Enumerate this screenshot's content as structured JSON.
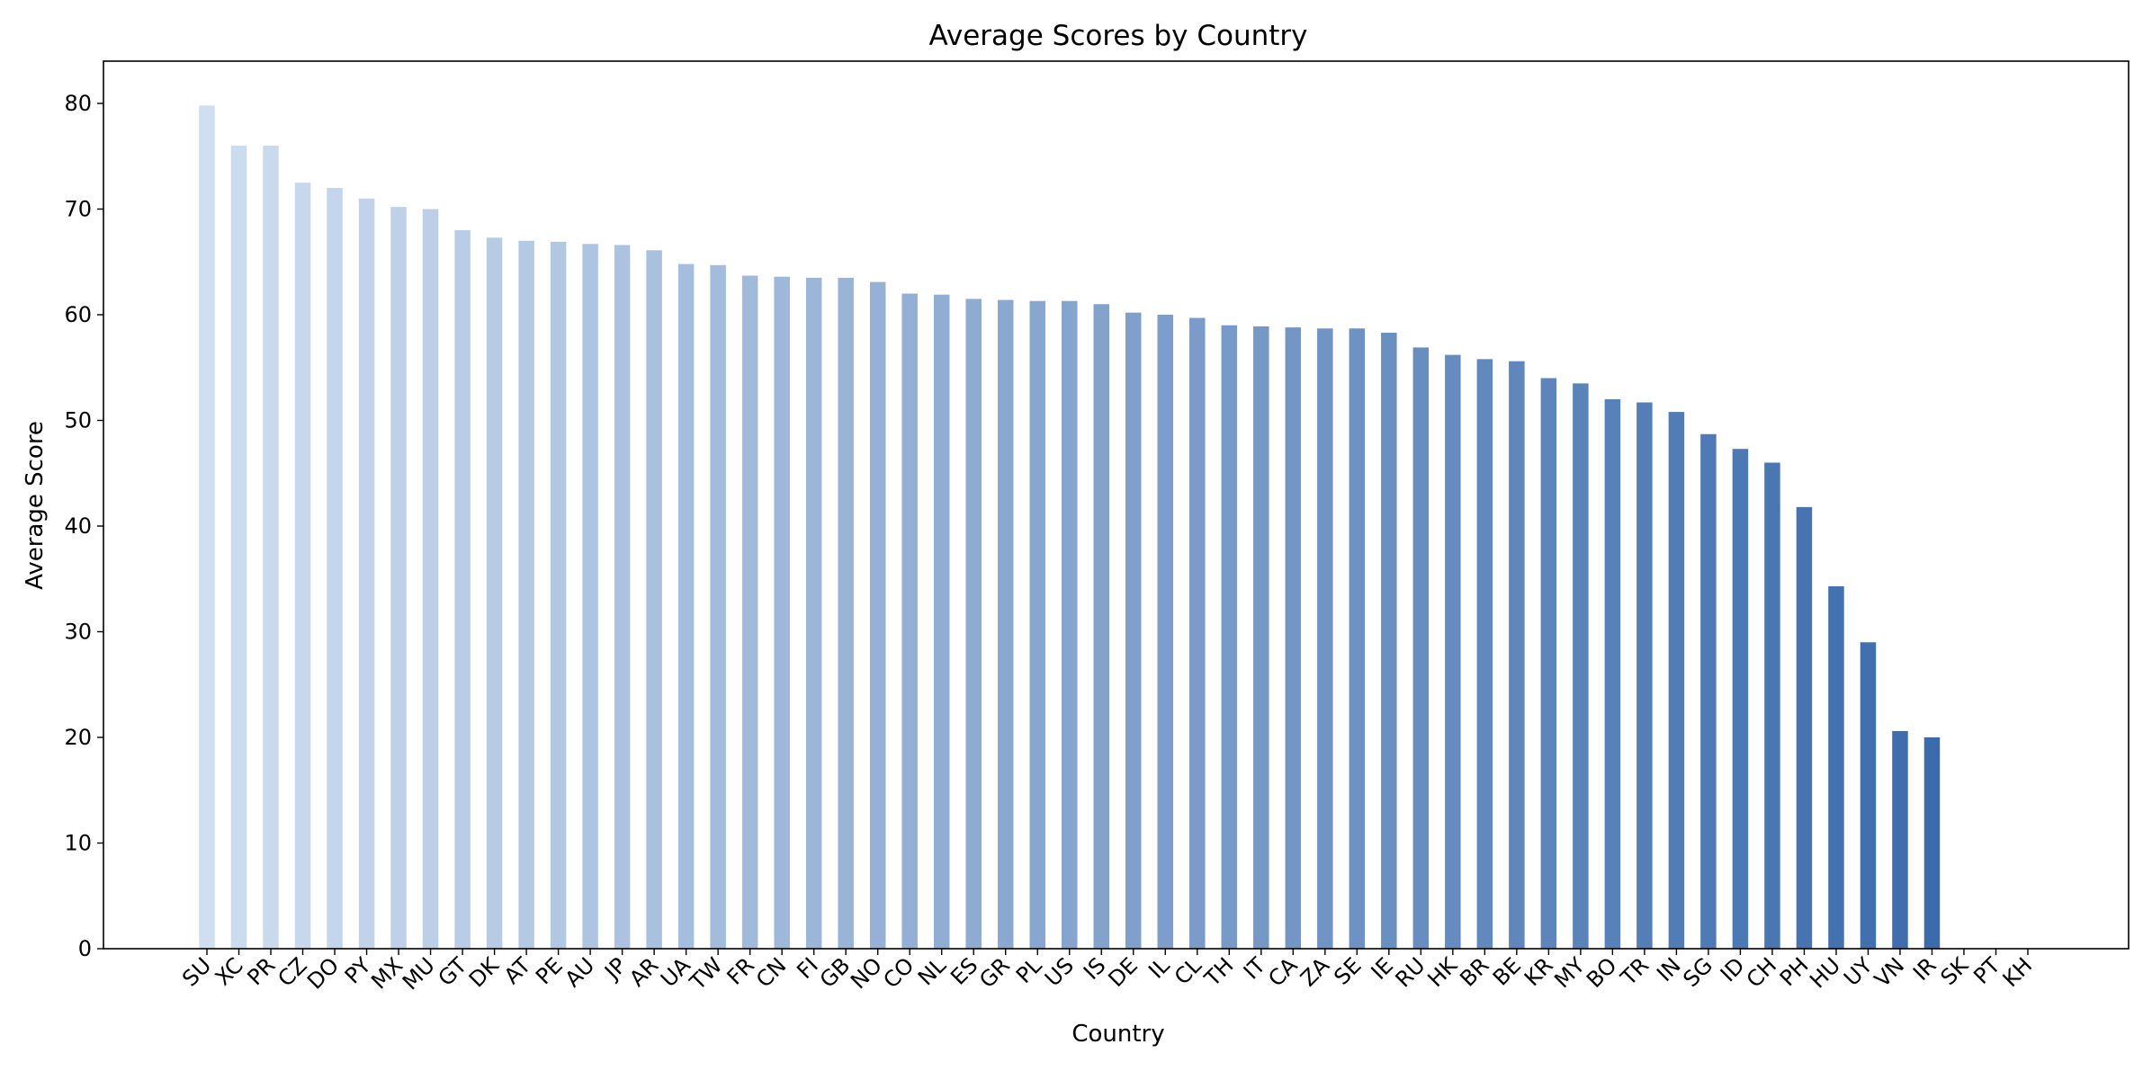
{
  "chart_data": {
    "type": "bar",
    "title": "Average Scores by Country",
    "xlabel": "Country",
    "ylabel": "Average Score",
    "ylim": [
      0,
      84
    ],
    "yticks": [
      0,
      10,
      20,
      30,
      40,
      50,
      60,
      70,
      80
    ],
    "grid": false,
    "legend": "none",
    "color_range": [
      "#cfdef0",
      "#3465a8"
    ],
    "categories": [
      "SU",
      "XC",
      "PR",
      "CZ",
      "DO",
      "PY",
      "MX",
      "MU",
      "GT",
      "DK",
      "AT",
      "PE",
      "AU",
      "JP",
      "AR",
      "UA",
      "TW",
      "FR",
      "CN",
      "FI",
      "GB",
      "NO",
      "CO",
      "NL",
      "ES",
      "GR",
      "PL",
      "US",
      "IS",
      "DE",
      "IL",
      "CL",
      "TH",
      "IT",
      "CA",
      "ZA",
      "SE",
      "IE",
      "RU",
      "HK",
      "BR",
      "BE",
      "KR",
      "MY",
      "BO",
      "TR",
      "IN",
      "SG",
      "ID",
      "CH",
      "PH",
      "HU",
      "UY",
      "VN",
      "IR",
      "SK",
      "PT",
      "KH"
    ],
    "values": [
      79.8,
      76.0,
      76.0,
      72.5,
      72.0,
      71.0,
      70.2,
      70.0,
      68.0,
      67.3,
      67.0,
      66.9,
      66.7,
      66.6,
      66.1,
      64.8,
      64.7,
      63.7,
      63.6,
      63.5,
      63.5,
      63.1,
      62.0,
      61.9,
      61.5,
      61.4,
      61.3,
      61.3,
      61.0,
      60.2,
      60.0,
      59.7,
      59.0,
      58.9,
      58.8,
      58.7,
      58.7,
      58.3,
      56.9,
      56.2,
      55.8,
      55.6,
      54.0,
      53.5,
      52.0,
      51.7,
      50.8,
      48.7,
      47.3,
      46.0,
      41.8,
      34.3,
      29.0,
      20.6,
      20.0,
      0,
      0,
      0
    ]
  }
}
